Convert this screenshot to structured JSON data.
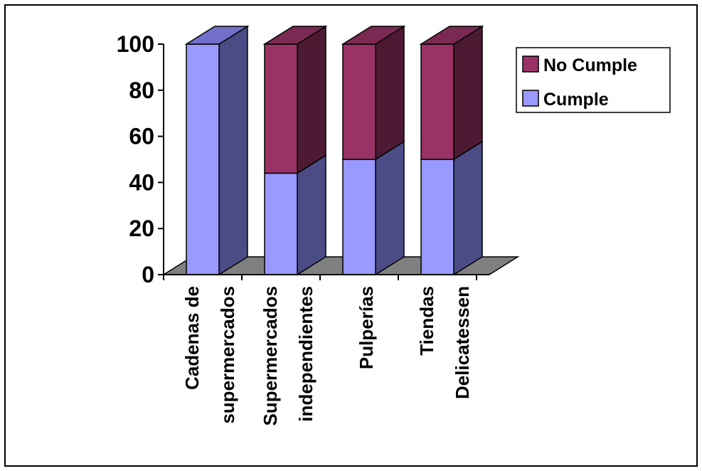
{
  "chart_data": {
    "type": "bar",
    "stacked": true,
    "three_d": true,
    "categories": [
      [
        "Cadenas de",
        "supermercados"
      ],
      [
        "Supermercados",
        "independientes"
      ],
      [
        "Pulperías"
      ],
      [
        "Tiendas",
        "Delicatessen"
      ]
    ],
    "series": [
      {
        "name": "Cumple",
        "values": [
          100,
          44,
          50,
          50
        ],
        "color": "#9999ff",
        "side_color": "#4b4c85",
        "top_color": "#7070c8"
      },
      {
        "name": "No Cumple",
        "values": [
          0,
          56,
          50,
          50
        ],
        "color": "#993366",
        "side_color": "#4d1a33",
        "top_color": "#7a2a52"
      }
    ],
    "legend_order": [
      "No Cumple",
      "Cumple"
    ],
    "y_ticks": [
      "0",
      "20",
      "40",
      "60",
      "80",
      "100"
    ],
    "ylim": [
      0,
      100
    ],
    "grid": false,
    "legend_position": "right",
    "floor_color": "#808080",
    "title": "",
    "xlabel": "",
    "ylabel": ""
  }
}
